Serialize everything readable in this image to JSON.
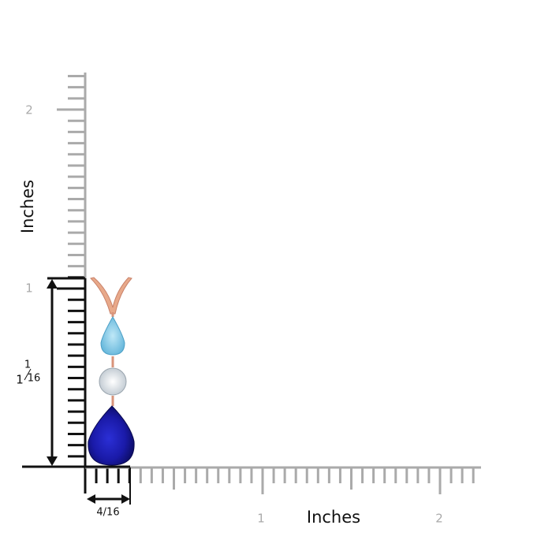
{
  "y_axis": {
    "label": "Inches",
    "tick_labels": [
      "2",
      "1"
    ]
  },
  "x_axis": {
    "label": "Inches",
    "tick_labels": [
      "1",
      "2"
    ]
  },
  "height_dimension": {
    "whole": "1",
    "numerator": "1",
    "denominator": "16"
  },
  "width_dimension": {
    "label": "4/16"
  }
}
